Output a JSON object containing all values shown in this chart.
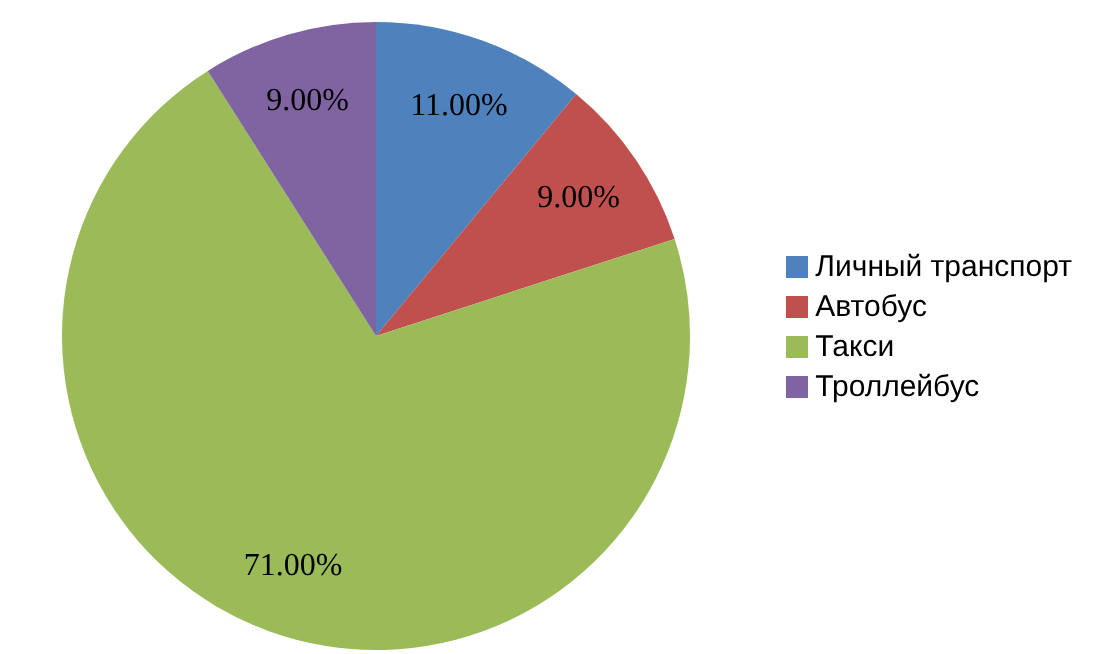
{
  "chart_data": {
    "type": "pie",
    "categories": [
      "Личный транспорт",
      "Автобус",
      "Такси",
      "Троллейбус"
    ],
    "values": [
      11,
      9,
      71,
      9
    ],
    "colors": [
      "#4f81bd",
      "#c0504d",
      "#9bbb59",
      "#8064a2"
    ],
    "value_labels": [
      "11.00%",
      "9.00%",
      "71.00%",
      "9.00%"
    ],
    "legend": "right"
  }
}
